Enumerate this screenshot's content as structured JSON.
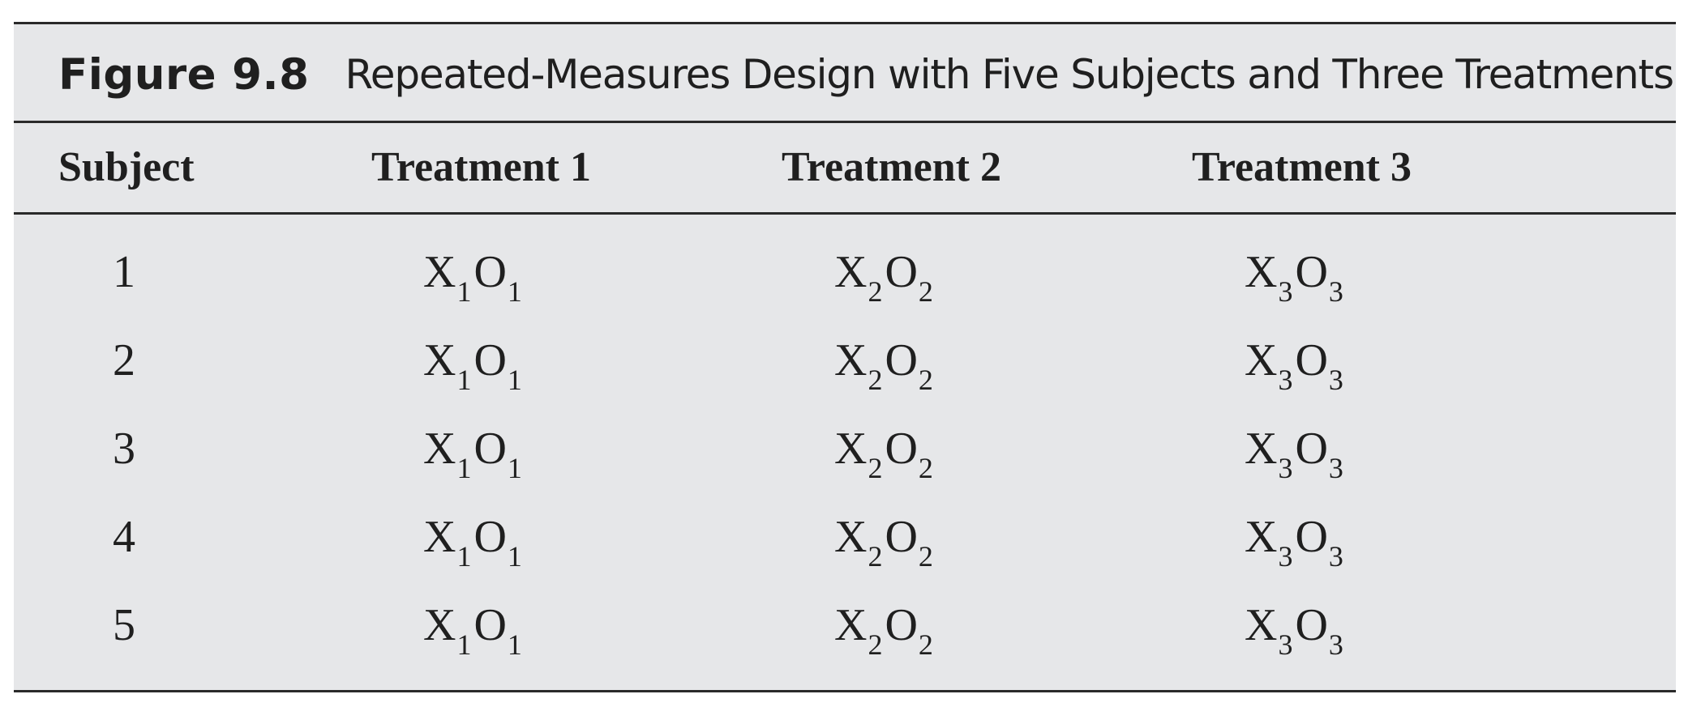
{
  "figure": {
    "label": "Figure 9.8",
    "title": "Repeated-Measures Design with Five Subjects and Three Treatments"
  },
  "table": {
    "headers": [
      "Subject",
      "Treatment 1",
      "Treatment 2",
      "Treatment 3"
    ],
    "rows": [
      {
        "subject": "1",
        "cells": [
          {
            "x": "X",
            "xs": "1",
            "o": "O",
            "os": "1"
          },
          {
            "x": "X",
            "xs": "2",
            "o": "O",
            "os": "2"
          },
          {
            "x": "X",
            "xs": "3",
            "o": "O",
            "os": "3"
          }
        ]
      },
      {
        "subject": "2",
        "cells": [
          {
            "x": "X",
            "xs": "1",
            "o": "O",
            "os": "1"
          },
          {
            "x": "X",
            "xs": "2",
            "o": "O",
            "os": "2"
          },
          {
            "x": "X",
            "xs": "3",
            "o": "O",
            "os": "3"
          }
        ]
      },
      {
        "subject": "3",
        "cells": [
          {
            "x": "X",
            "xs": "1",
            "o": "O",
            "os": "1"
          },
          {
            "x": "X",
            "xs": "2",
            "o": "O",
            "os": "2"
          },
          {
            "x": "X",
            "xs": "3",
            "o": "O",
            "os": "3"
          }
        ]
      },
      {
        "subject": "4",
        "cells": [
          {
            "x": "X",
            "xs": "1",
            "o": "O",
            "os": "1"
          },
          {
            "x": "X",
            "xs": "2",
            "o": "O",
            "os": "2"
          },
          {
            "x": "X",
            "xs": "3",
            "o": "O",
            "os": "3"
          }
        ]
      },
      {
        "subject": "5",
        "cells": [
          {
            "x": "X",
            "xs": "1",
            "o": "O",
            "os": "1"
          },
          {
            "x": "X",
            "xs": "2",
            "o": "O",
            "os": "2"
          },
          {
            "x": "X",
            "xs": "3",
            "o": "O",
            "os": "3"
          }
        ]
      }
    ]
  }
}
